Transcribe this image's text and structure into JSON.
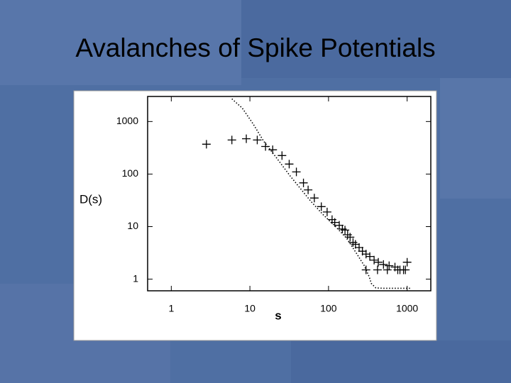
{
  "chart_data": {
    "type": "scatter",
    "title": "Avalanches of Spike Potentials",
    "x_label": "s",
    "y_label": "D(s)",
    "xlog": true,
    "ylog": true,
    "xlim": [
      0.5,
      2000
    ],
    "ylim": [
      0.6,
      3000
    ],
    "xticks": [
      1,
      10,
      100,
      1000
    ],
    "yticks": [
      1,
      10,
      100,
      1000
    ],
    "series": [
      {
        "mode": "markers",
        "color": "#000000",
        "x": [
          2.8,
          5.9,
          9,
          12.4,
          15.8,
          19.5,
          25.6,
          31.6,
          39,
          48,
          55,
          66,
          81,
          96,
          111,
          120,
          137,
          150,
          162,
          175,
          188,
          205,
          220,
          245,
          270,
          300,
          335,
          380,
          430,
          500,
          590,
          700,
          810,
          900,
          1000,
          300,
          420,
          560,
          760,
          950
        ],
        "y": [
          370,
          445,
          470,
          445,
          335,
          290,
          225,
          155,
          110,
          68,
          50,
          35,
          24,
          19,
          13.6,
          12,
          10.6,
          9,
          8.6,
          7,
          6.3,
          5,
          4.6,
          4,
          3.4,
          3,
          2.7,
          2.3,
          2.1,
          1.9,
          1.8,
          1.7,
          1.5,
          1.5,
          2.1,
          1.5,
          1.5,
          1.5,
          1.5,
          1.5
        ]
      },
      {
        "mode": "dotted-line",
        "color": "#000000",
        "x": [
          5.9,
          8,
          11,
          15,
          22,
          32,
          43,
          60,
          85,
          123,
          170,
          230,
          285,
          330,
          350,
          400,
          500,
          650,
          850,
          1100
        ],
        "y": [
          2700,
          1800,
          900,
          420,
          200,
          95,
          55,
          30,
          17,
          10,
          6,
          3,
          1.8,
          1.1,
          0.83,
          0.68,
          0.67,
          0.67,
          0.67,
          0.67
        ]
      }
    ]
  }
}
